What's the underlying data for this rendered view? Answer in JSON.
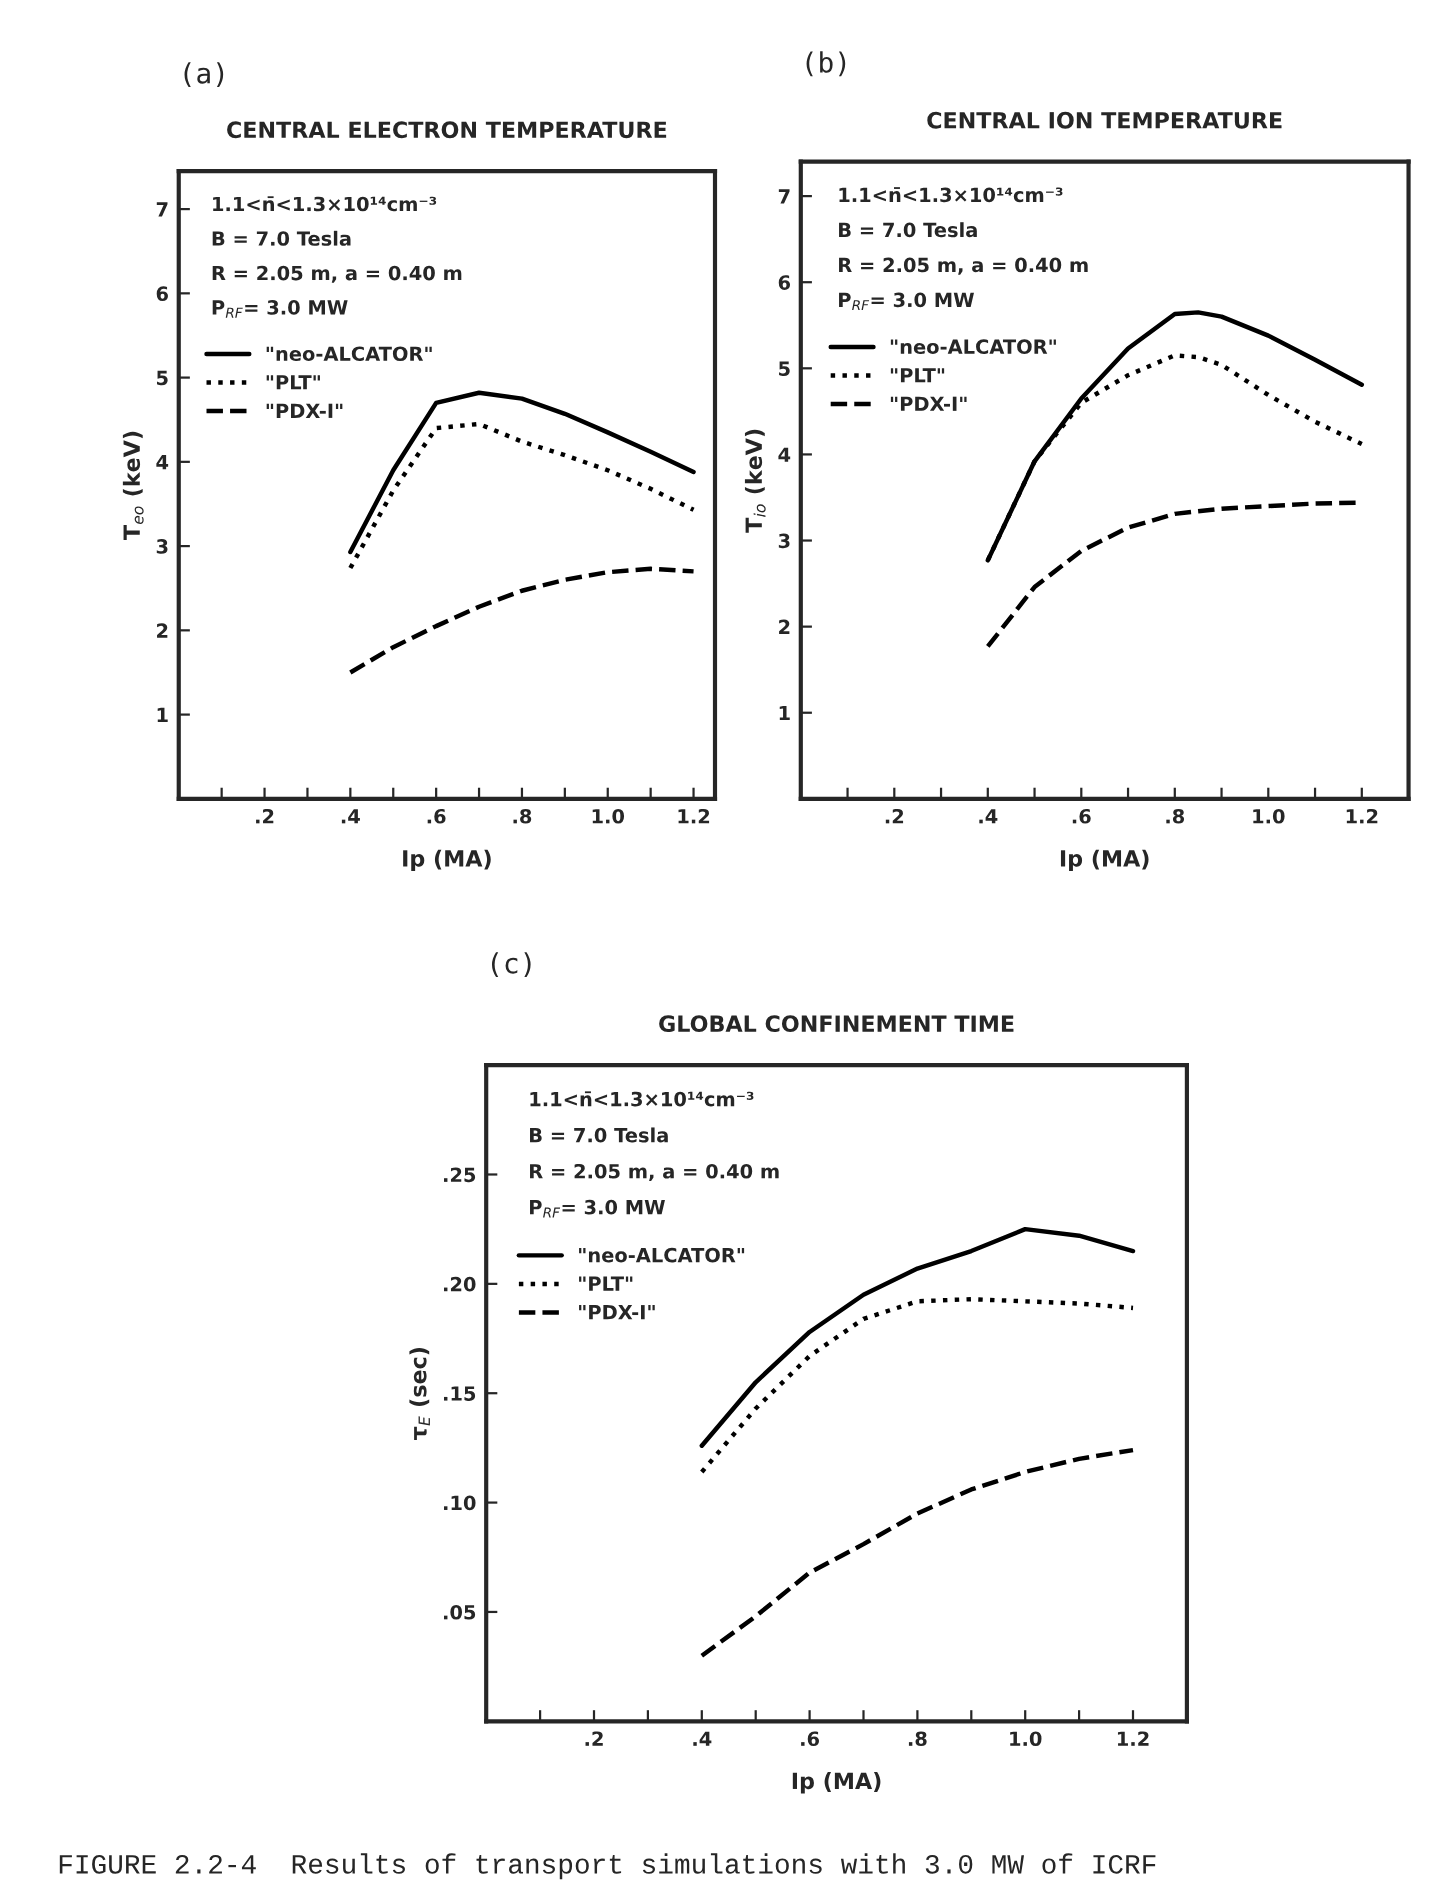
{
  "chart_data": [
    {
      "type": "line",
      "title": "CENTRAL ELECTRON TEMPERATURE",
      "xlabel": "Ip (MA)",
      "ylabel": "T$_{eo}$ (keV)",
      "annotations": [
        "(a)",
        "1.1<n̄<1.3×10¹⁴cm⁻³",
        "B = 7.0 Tesla",
        "R = 2.05 m, a = 0.40 m",
        "P$_{RF}$= 3.0 MW"
      ],
      "x": [
        0.4,
        0.5,
        0.6,
        0.7,
        0.8,
        0.9,
        1.0,
        1.1,
        1.2
      ],
      "series": [
        {
          "name": "\"neo-ALCATOR\"",
          "color": "#000000",
          "line_style": "solid",
          "values": [
            2.93,
            3.9,
            4.7,
            4.82,
            4.75,
            4.57,
            4.35,
            4.12,
            3.88
          ]
        },
        {
          "name": "\"PLT\"",
          "color": "#000000",
          "line_style": "dotted",
          "values": [
            2.74,
            3.66,
            4.4,
            4.45,
            4.24,
            4.08,
            3.9,
            3.68,
            3.43
          ]
        },
        {
          "name": "\"PDX-I\"",
          "color": "#000000",
          "line_style": "dashed",
          "values": [
            1.5,
            1.8,
            2.05,
            2.28,
            2.47,
            2.6,
            2.69,
            2.73,
            2.7
          ]
        }
      ],
      "xlim": [
        0,
        1.25
      ],
      "ylim": [
        0,
        7.45
      ],
      "xticks": [
        {
          "value": 0.1,
          "label": null
        },
        {
          "value": 0.2,
          "label": ".2"
        },
        {
          "value": 0.3,
          "label": null
        },
        {
          "value": 0.4,
          "label": ".4"
        },
        {
          "value": 0.5,
          "label": null
        },
        {
          "value": 0.6,
          "label": ".6"
        },
        {
          "value": 0.7,
          "label": null
        },
        {
          "value": 0.8,
          "label": ".8"
        },
        {
          "value": 0.9,
          "label": null
        },
        {
          "value": 1.0,
          "label": "1.0"
        },
        {
          "value": 1.1,
          "label": null
        },
        {
          "value": 1.2,
          "label": "1.2"
        }
      ],
      "yticks": [
        1,
        2,
        3,
        4,
        5,
        6,
        7
      ],
      "grid": false,
      "legend": "top left"
    },
    {
      "type": "line",
      "title": "CENTRAL ION TEMPERATURE",
      "xlabel": "Ip (MA)",
      "ylabel": "T$_{io}$ (keV)",
      "annotations": [
        "(b)",
        "1.1<n̄<1.3×10¹⁴cm⁻³",
        "B = 7.0 Tesla",
        "R = 2.05 m, a = 0.40 m",
        "P$_{RF}$= 3.0 MW"
      ],
      "x": [
        0.4,
        0.5,
        0.6,
        0.7,
        0.8,
        0.85,
        0.9,
        1.0,
        1.1,
        1.2
      ],
      "series": [
        {
          "name": "\"neo-ALCATOR\"",
          "color": "#000000",
          "line_style": "solid",
          "values": [
            2.77,
            3.92,
            4.65,
            5.23,
            5.63,
            5.65,
            5.6,
            5.38,
            5.1,
            4.81
          ]
        },
        {
          "name": "\"PLT\"",
          "color": "#000000",
          "line_style": "dotted",
          "values": [
            2.77,
            3.92,
            4.6,
            4.92,
            5.15,
            5.13,
            5.04,
            4.69,
            4.38,
            4.12
          ]
        },
        {
          "name": "\"PDX-I\"",
          "color": "#000000",
          "line_style": "dashed",
          "values": [
            1.77,
            2.46,
            2.88,
            3.15,
            3.31,
            3.34,
            3.37,
            3.4,
            3.43,
            3.44
          ]
        }
      ],
      "xlim": [
        0,
        1.3
      ],
      "ylim": [
        0,
        7.4
      ],
      "xticks": [
        {
          "value": 0.1,
          "label": null
        },
        {
          "value": 0.2,
          "label": ".2"
        },
        {
          "value": 0.3,
          "label": null
        },
        {
          "value": 0.4,
          "label": ".4"
        },
        {
          "value": 0.5,
          "label": null
        },
        {
          "value": 0.6,
          "label": ".6"
        },
        {
          "value": 0.7,
          "label": null
        },
        {
          "value": 0.8,
          "label": ".8"
        },
        {
          "value": 0.9,
          "label": null
        },
        {
          "value": 1.0,
          "label": "1.0"
        },
        {
          "value": 1.1,
          "label": null
        },
        {
          "value": 1.2,
          "label": "1.2"
        }
      ],
      "yticks": [
        1,
        2,
        3,
        4,
        5,
        6,
        7
      ],
      "grid": false,
      "legend": "top left"
    },
    {
      "type": "line",
      "title": "GLOBAL CONFINEMENT TIME",
      "xlabel": "Ip (MA)",
      "ylabel": "τ$_{E}$ (sec)",
      "annotations": [
        "(c)",
        "1.1<n̄<1.3×10¹⁴cm⁻³",
        "B = 7.0 Tesla",
        "R = 2.05 m, a = 0.40 m",
        "P$_{RF}$= 3.0 MW",
        "FIGURE 2.2-4  Results of transport simulations with 3.0 MW of ICRF"
      ],
      "x": [
        0.4,
        0.5,
        0.6,
        0.7,
        0.8,
        0.9,
        1.0,
        1.1,
        1.2
      ],
      "series": [
        {
          "name": "\"neo-ALCATOR\"",
          "color": "#000000",
          "line_style": "solid",
          "values": [
            0.126,
            0.155,
            0.178,
            0.195,
            0.207,
            0.215,
            0.225,
            0.222,
            0.215
          ]
        },
        {
          "name": "\"PLT\"",
          "color": "#000000",
          "line_style": "dotted",
          "values": [
            0.114,
            0.143,
            0.167,
            0.184,
            0.192,
            0.193,
            0.192,
            0.191,
            0.189
          ]
        },
        {
          "name": "\"PDX-I\"",
          "color": "#000000",
          "line_style": "dashed",
          "values": [
            0.03,
            0.048,
            0.068,
            0.081,
            0.095,
            0.106,
            0.114,
            0.12,
            0.124
          ]
        }
      ],
      "xlim": [
        0,
        1.3
      ],
      "ylim": [
        0,
        0.3
      ],
      "xticks": [
        {
          "value": 0.1,
          "label": null
        },
        {
          "value": 0.2,
          "label": ".2"
        },
        {
          "value": 0.3,
          "label": null
        },
        {
          "value": 0.4,
          "label": ".4"
        },
        {
          "value": 0.5,
          "label": null
        },
        {
          "value": 0.6,
          "label": ".6"
        },
        {
          "value": 0.7,
          "label": null
        },
        {
          "value": 0.8,
          "label": ".8"
        },
        {
          "value": 0.9,
          "label": null
        },
        {
          "value": 1.0,
          "label": "1.0"
        },
        {
          "value": 1.1,
          "label": null
        },
        {
          "value": 1.2,
          "label": "1.2"
        }
      ],
      "yticks": [
        {
          "value": 0.05,
          "label": ".05"
        },
        {
          "value": 0.1,
          "label": ".10"
        },
        {
          "value": 0.15,
          "label": ".15"
        },
        {
          "value": 0.2,
          "label": ".20"
        },
        {
          "value": 0.25,
          "label": ".25"
        }
      ],
      "grid": false,
      "legend": "top left"
    }
  ]
}
